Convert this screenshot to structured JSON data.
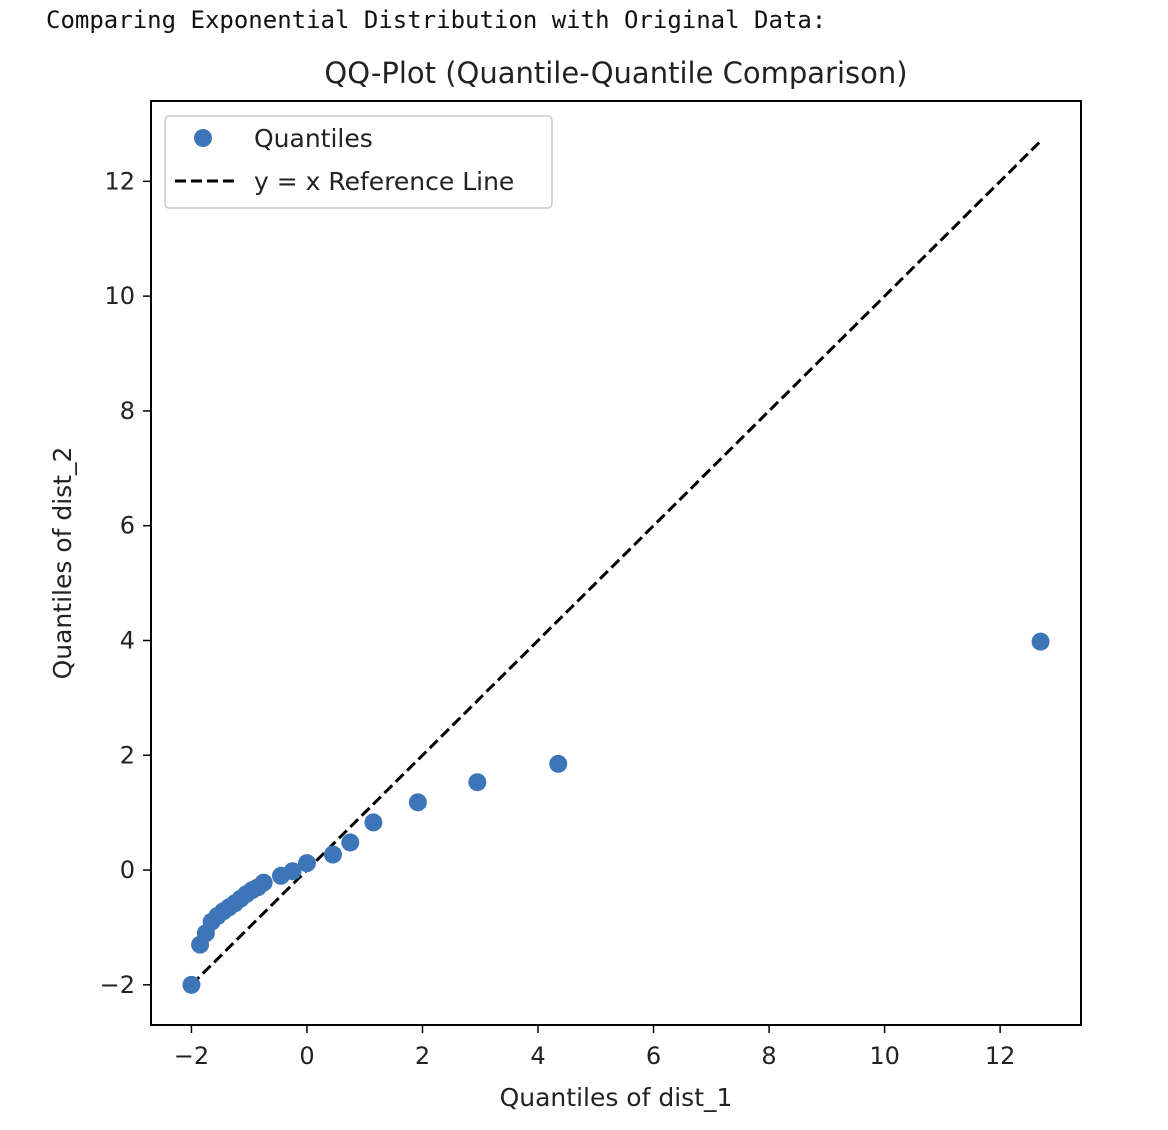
{
  "output_text": "Comparing Exponential Distribution with Original Data:",
  "chart_data": {
    "type": "scatter",
    "title": "QQ-Plot (Quantile-Quantile Comparison)",
    "xlabel": "Quantiles of dist_1",
    "ylabel": "Quantiles of dist_2",
    "xlim": [
      -2.7,
      13.4
    ],
    "ylim": [
      -2.7,
      13.4
    ],
    "xticks": [
      -2,
      0,
      2,
      4,
      6,
      8,
      10,
      12
    ],
    "yticks": [
      -2,
      0,
      2,
      4,
      6,
      8,
      10,
      12
    ],
    "xtick_labels": [
      "−2",
      "0",
      "2",
      "4",
      "6",
      "8",
      "10",
      "12"
    ],
    "ytick_labels": [
      "−2",
      "0",
      "2",
      "4",
      "6",
      "8",
      "10",
      "12"
    ],
    "grid": false,
    "legend_position": "upper-left",
    "series": [
      {
        "name": "Quantiles",
        "kind": "points",
        "color": "#3d76b8",
        "x": [
          -2.0,
          -1.85,
          -1.75,
          -1.65,
          -1.55,
          -1.45,
          -1.35,
          -1.25,
          -1.15,
          -1.05,
          -0.95,
          -0.85,
          -0.75,
          -0.45,
          -0.25,
          0.0,
          0.45,
          0.75,
          1.15,
          1.92,
          2.95,
          4.35,
          12.7
        ],
        "y": [
          -2.0,
          -1.3,
          -1.1,
          -0.9,
          -0.8,
          -0.72,
          -0.65,
          -0.58,
          -0.5,
          -0.42,
          -0.35,
          -0.3,
          -0.22,
          -0.1,
          -0.02,
          0.12,
          0.27,
          0.48,
          0.83,
          1.18,
          1.53,
          1.85,
          3.98
        ]
      },
      {
        "name": "y = x Reference Line",
        "kind": "dashed-line",
        "color": "#000000",
        "x": [
          -2.0,
          12.7
        ],
        "y": [
          -2.0,
          12.7
        ]
      }
    ]
  }
}
